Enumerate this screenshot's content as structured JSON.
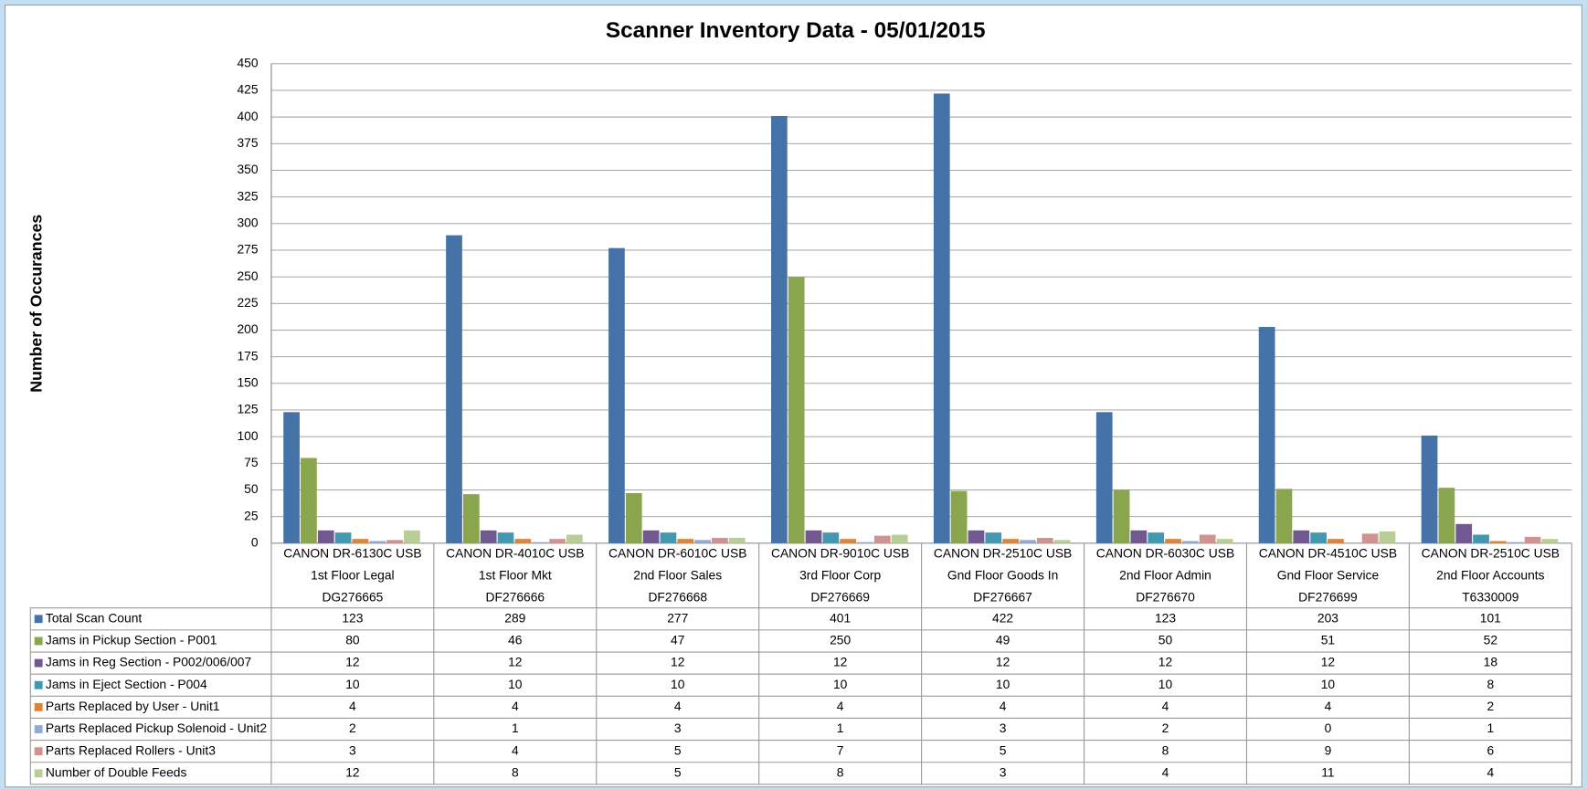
{
  "chart_data": {
    "type": "bar",
    "title": "Scanner Inventory Data - 05/01/2015",
    "y_label": "Number of Occurances",
    "categories": [
      [
        "CANON DR-6130C USB",
        "1st Floor Legal",
        "DG276665"
      ],
      [
        "CANON DR-4010C USB",
        "1st Floor Mkt",
        "DF276666"
      ],
      [
        "CANON DR-6010C USB",
        "2nd Floor Sales",
        "DF276668"
      ],
      [
        "CANON DR-9010C USB",
        "3rd Floor Corp",
        "DF276669"
      ],
      [
        "CANON DR-2510C USB",
        "Gnd Floor Goods In",
        "DF276667"
      ],
      [
        "CANON DR-6030C USB",
        "2nd Floor Admin",
        "DF276670"
      ],
      [
        "CANON DR-4510C USB",
        "Gnd Floor Service",
        "DF276699"
      ],
      [
        "CANON DR-2510C USB",
        "2nd Floor Accounts",
        "T6330009"
      ]
    ],
    "series": [
      {
        "name": "Total Scan Count",
        "color": "#4572a7",
        "values": [
          123,
          289,
          277,
          401,
          422,
          123,
          203,
          101
        ]
      },
      {
        "name": "Jams in Pickup Section - P001",
        "color": "#89a54e",
        "values": [
          80,
          46,
          47,
          250,
          49,
          50,
          51,
          52
        ]
      },
      {
        "name": "Jams in Reg Section - P002/006/007",
        "color": "#71588f",
        "values": [
          12,
          12,
          12,
          12,
          12,
          12,
          12,
          18
        ]
      },
      {
        "name": "Jams in Eject Section - P004",
        "color": "#4198af",
        "values": [
          10,
          10,
          10,
          10,
          10,
          10,
          10,
          8
        ]
      },
      {
        "name": "Parts Replaced by User - Unit1",
        "color": "#db843d",
        "values": [
          4,
          4,
          4,
          4,
          4,
          4,
          4,
          2
        ]
      },
      {
        "name": "Parts Replaced Pickup Solenoid - Unit2",
        "color": "#93a9cf",
        "values": [
          2,
          1,
          3,
          1,
          3,
          2,
          0,
          1
        ]
      },
      {
        "name": "Parts Replaced Rollers - Unit3",
        "color": "#d19392",
        "values": [
          3,
          4,
          5,
          7,
          5,
          8,
          9,
          6
        ]
      },
      {
        "name": "Number of Double Feeds",
        "color": "#b9cd96",
        "values": [
          12,
          8,
          5,
          8,
          3,
          4,
          11,
          4
        ]
      }
    ],
    "ylim": [
      0,
      450
    ],
    "yticks": [
      0,
      25,
      50,
      75,
      100,
      125,
      150,
      175,
      200,
      225,
      250,
      275,
      300,
      325,
      350,
      375,
      400,
      425,
      450
    ],
    "grid": true
  }
}
